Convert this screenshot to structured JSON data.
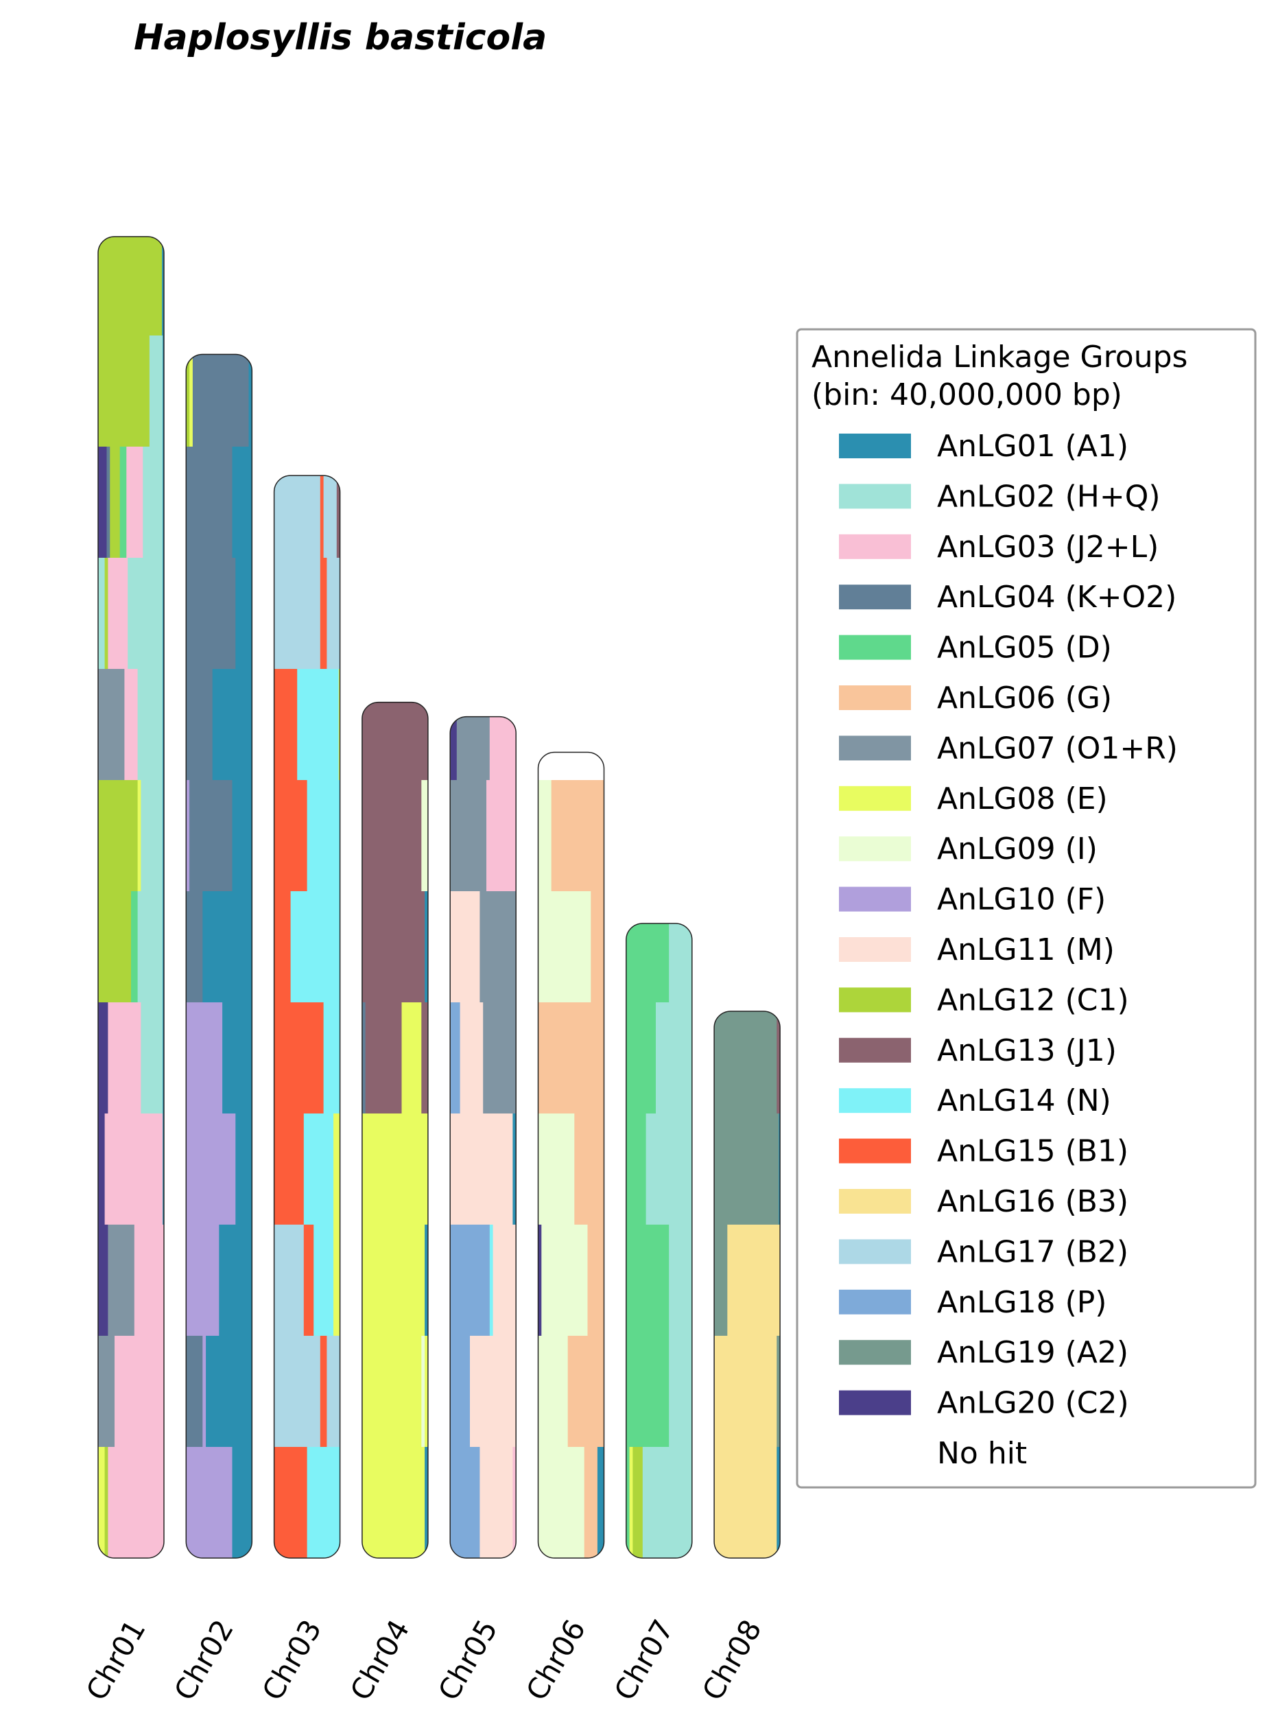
{
  "chart_data": {
    "type": "chromosome",
    "title": "Haplosyllis basticola",
    "legend_title": [
      "Annelida Linkage Groups",
      "(bin: 40,000,000 bp)"
    ],
    "groups": [
      {
        "name": "AnLG01 (A1)",
        "color": "#2b8fb0"
      },
      {
        "name": "AnLG02 (H+Q)",
        "color": "#a0e3d8"
      },
      {
        "name": "AnLG03 (J2+L)",
        "color": "#f9bfd5"
      },
      {
        "name": "AnLG04 (K+O2)",
        "color": "#617f97"
      },
      {
        "name": "AnLG05 (D)",
        "color": "#5fd98c"
      },
      {
        "name": "AnLG06 (G)",
        "color": "#f9c59b"
      },
      {
        "name": "AnLG07 (O1+R)",
        "color": "#8095a3"
      },
      {
        "name": "AnLG08 (E)",
        "color": "#e8fc60"
      },
      {
        "name": "AnLG09 (I)",
        "color": "#eafdd4"
      },
      {
        "name": "AnLG10 (F)",
        "color": "#b09fdc"
      },
      {
        "name": "AnLG11 (M)",
        "color": "#fde0d6"
      },
      {
        "name": "AnLG12 (C1)",
        "color": "#add53a"
      },
      {
        "name": "AnLG13 (J1)",
        "color": "#8b636f"
      },
      {
        "name": "AnLG14 (N)",
        "color": "#7ff2f8"
      },
      {
        "name": "AnLG15 (B1)",
        "color": "#fd5d3a"
      },
      {
        "name": "AnLG16 (B3)",
        "color": "#f9e392"
      },
      {
        "name": "AnLG17 (B2)",
        "color": "#add8e6"
      },
      {
        "name": "AnLG18 (P)",
        "color": "#7eaad9"
      },
      {
        "name": "AnLG19 (A2)",
        "color": "#769a8e"
      },
      {
        "name": "AnLG20 (C2)",
        "color": "#4b3f8a"
      },
      {
        "name": "No hit",
        "color": "#ffffff"
      }
    ],
    "chromosomes": [
      {
        "name": "Chr01",
        "length_bins": 11.89,
        "bins": [
          [
            [
              11,
              0.97
            ],
            [
              0,
              0.03
            ]
          ],
          [
            [
              11,
              0.78
            ],
            [
              1,
              0.2
            ],
            [
              0,
              0.02
            ]
          ],
          [
            [
              19,
              0.13
            ],
            [
              3,
              0.05
            ],
            [
              11,
              0.15
            ],
            [
              4,
              0.1
            ],
            [
              2,
              0.25
            ],
            [
              1,
              0.3
            ],
            [
              0,
              0.02
            ]
          ],
          [
            [
              1,
              0.1
            ],
            [
              11,
              0.05
            ],
            [
              2,
              0.3
            ],
            [
              1,
              0.53
            ],
            [
              0,
              0.02
            ]
          ],
          [
            [
              6,
              0.4
            ],
            [
              2,
              0.2
            ],
            [
              1,
              0.38
            ],
            [
              0,
              0.02
            ]
          ],
          [
            [
              11,
              0.6
            ],
            [
              7,
              0.05
            ],
            [
              1,
              0.33
            ],
            [
              0,
              0.02
            ]
          ],
          [
            [
              11,
              0.5
            ],
            [
              4,
              0.1
            ],
            [
              1,
              0.38
            ],
            [
              0,
              0.02
            ]
          ],
          [
            [
              19,
              0.15
            ],
            [
              2,
              0.5
            ],
            [
              1,
              0.33
            ],
            [
              0,
              0.02
            ]
          ],
          [
            [
              19,
              0.1
            ],
            [
              2,
              0.88
            ],
            [
              0,
              0.02
            ]
          ],
          [
            [
              19,
              0.15
            ],
            [
              6,
              0.4
            ],
            [
              2,
              0.45
            ]
          ],
          [
            [
              6,
              0.25
            ],
            [
              2,
              0.75
            ]
          ],
          [
            [
              7,
              0.1
            ],
            [
              11,
              0.05
            ],
            [
              2,
              0.85
            ]
          ]
        ]
      },
      {
        "name": "Chr02",
        "length_bins": 10.83,
        "bins": [
          [
            [
              11,
              0.05
            ],
            [
              7,
              0.05
            ],
            [
              3,
              0.85
            ],
            [
              0,
              0.05
            ]
          ],
          [
            [
              3,
              0.7
            ],
            [
              0,
              0.3
            ]
          ],
          [
            [
              3,
              0.75
            ],
            [
              0,
              0.25
            ]
          ],
          [
            [
              3,
              0.4
            ],
            [
              0,
              0.6
            ]
          ],
          [
            [
              9,
              0.05
            ],
            [
              3,
              0.65
            ],
            [
              0,
              0.3
            ]
          ],
          [
            [
              3,
              0.25
            ],
            [
              0,
              0.75
            ]
          ],
          [
            [
              9,
              0.55
            ],
            [
              0,
              0.45
            ]
          ],
          [
            [
              9,
              0.75
            ],
            [
              0,
              0.25
            ]
          ],
          [
            [
              9,
              0.5
            ],
            [
              0,
              0.5
            ]
          ],
          [
            [
              3,
              0.25
            ],
            [
              9,
              0.05
            ],
            [
              0,
              0.7
            ]
          ],
          [
            [
              9,
              0.7
            ],
            [
              0,
              0.3
            ]
          ]
        ]
      },
      {
        "name": "Chr03",
        "length_bins": 9.74,
        "bins": [
          [
            [
              16,
              0.7
            ],
            [
              14,
              0.05
            ],
            [
              16,
              0.2
            ],
            [
              12,
              0.05
            ]
          ],
          [
            [
              16,
              0.7
            ],
            [
              14,
              0.1
            ],
            [
              16,
              0.2
            ]
          ],
          [
            [
              14,
              0.35
            ],
            [
              13,
              0.63
            ],
            [
              7,
              0.02
            ]
          ],
          [
            [
              14,
              0.5
            ],
            [
              13,
              0.5
            ]
          ],
          [
            [
              14,
              0.25
            ],
            [
              13,
              0.75
            ]
          ],
          [
            [
              14,
              0.75
            ],
            [
              13,
              0.25
            ]
          ],
          [
            [
              14,
              0.45
            ],
            [
              13,
              0.45
            ],
            [
              7,
              0.1
            ]
          ],
          [
            [
              16,
              0.45
            ],
            [
              14,
              0.15
            ],
            [
              13,
              0.3
            ],
            [
              7,
              0.1
            ]
          ],
          [
            [
              16,
              0.7
            ],
            [
              14,
              0.1
            ],
            [
              16,
              0.2
            ]
          ],
          [
            [
              14,
              0.5
            ],
            [
              13,
              0.5
            ]
          ]
        ]
      },
      {
        "name": "Chr04",
        "length_bins": 7.7,
        "bins": [
          [
            [
              12,
              1
            ]
          ],
          [
            [
              12,
              0.9
            ],
            [
              8,
              0.1
            ]
          ],
          [
            [
              12,
              0.95
            ],
            [
              0,
              0.05
            ]
          ],
          [
            [
              3,
              0.05
            ],
            [
              12,
              0.55
            ],
            [
              7,
              0.3
            ],
            [
              12,
              0.1
            ]
          ],
          [
            [
              7,
              1
            ]
          ],
          [
            [
              7,
              0.95
            ],
            [
              0,
              0.05
            ]
          ],
          [
            [
              7,
              0.9
            ],
            [
              8,
              0.05
            ],
            [
              7,
              0.05
            ]
          ],
          [
            [
              7,
              0.95
            ],
            [
              0,
              0.05
            ]
          ]
        ]
      },
      {
        "name": "Chr05",
        "length_bins": 7.57,
        "bins": [
          [
            [
              19,
              0.1
            ],
            [
              6,
              0.5
            ],
            [
              2,
              0.4
            ]
          ],
          [
            [
              6,
              0.55
            ],
            [
              2,
              0.45
            ]
          ],
          [
            [
              10,
              0.45
            ],
            [
              6,
              0.55
            ]
          ],
          [
            [
              17,
              0.15
            ],
            [
              10,
              0.35
            ],
            [
              6,
              0.5
            ]
          ],
          [
            [
              10,
              0.95
            ],
            [
              0,
              0.05
            ]
          ],
          [
            [
              17,
              0.6
            ],
            [
              13,
              0.05
            ],
            [
              10,
              0.35
            ]
          ],
          [
            [
              17,
              0.3
            ],
            [
              10,
              0.7
            ]
          ],
          [
            [
              17,
              0.45
            ],
            [
              10,
              0.5
            ],
            [
              2,
              0.05
            ]
          ]
        ]
      },
      {
        "name": "Chr06",
        "length_bins": 7.25,
        "bins": [
          [
            [
              20,
              1
            ]
          ],
          [
            [
              8,
              0.2
            ],
            [
              5,
              0.8
            ]
          ],
          [
            [
              8,
              0.8
            ],
            [
              5,
              0.2
            ]
          ],
          [
            [
              5,
              1
            ]
          ],
          [
            [
              8,
              0.55
            ],
            [
              5,
              0.45
            ]
          ],
          [
            [
              19,
              0.05
            ],
            [
              8,
              0.7
            ],
            [
              5,
              0.25
            ]
          ],
          [
            [
              8,
              0.45
            ],
            [
              5,
              0.55
            ]
          ],
          [
            [
              8,
              0.7
            ],
            [
              5,
              0.2
            ],
            [
              0,
              0.1
            ]
          ]
        ]
      },
      {
        "name": "Chr07",
        "length_bins": 5.71,
        "bins": [
          [
            [
              4,
              0.65
            ],
            [
              1,
              0.35
            ]
          ],
          [
            [
              4,
              0.45
            ],
            [
              1,
              0.55
            ]
          ],
          [
            [
              4,
              0.3
            ],
            [
              1,
              0.7
            ]
          ],
          [
            [
              4,
              0.65
            ],
            [
              1,
              0.35
            ]
          ],
          [
            [
              4,
              0.65
            ],
            [
              1,
              0.35
            ]
          ],
          [
            [
              4,
              0.05
            ],
            [
              7,
              0.05
            ],
            [
              11,
              0.15
            ],
            [
              1,
              0.75
            ]
          ]
        ]
      },
      {
        "name": "Chr08",
        "length_bins": 4.92,
        "bins": [
          [
            [
              18,
              0.95
            ],
            [
              12,
              0.05
            ]
          ],
          [
            [
              18,
              0.98
            ],
            [
              0,
              0.02
            ]
          ],
          [
            [
              18,
              0.2
            ],
            [
              15,
              0.8
            ]
          ],
          [
            [
              15,
              0.95
            ],
            [
              18,
              0.05
            ]
          ],
          [
            [
              15,
              0.95
            ],
            [
              0,
              0.05
            ]
          ]
        ]
      }
    ]
  }
}
